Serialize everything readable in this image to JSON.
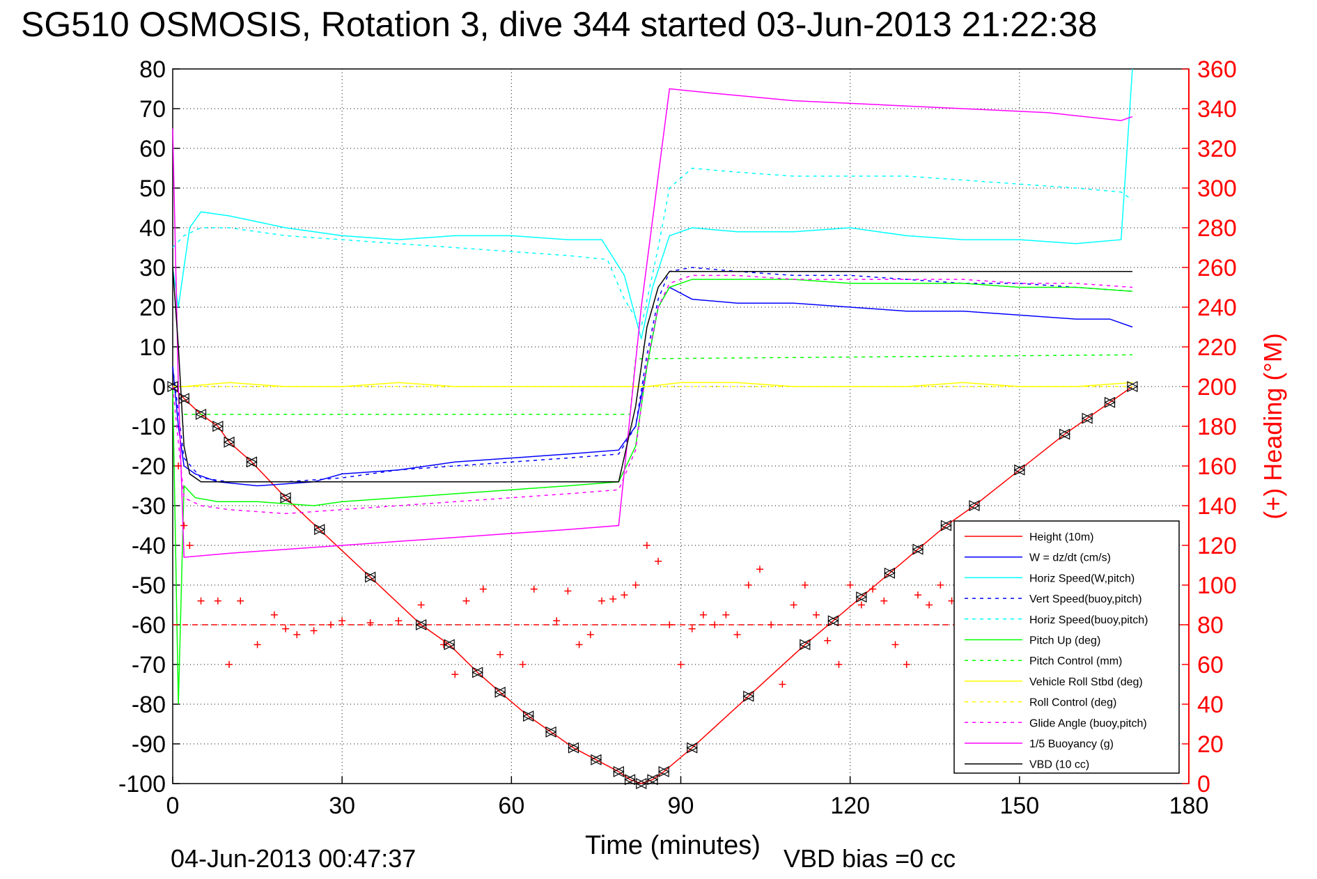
{
  "chart_data": {
    "type": "line",
    "title": "SG510 OSMOSIS, Rotation 3, dive 344 started 03-Jun-2013 21:22:38",
    "xlabel": "Time (minutes)",
    "ylabel_right": "(+) Heading (°M)",
    "footer_left": "04-Jun-2013 00:47:37",
    "footer_right": "VBD bias =0 cc",
    "xlim": [
      0,
      180
    ],
    "ylim_left": [
      -100,
      80
    ],
    "ylim_right": [
      0,
      360
    ],
    "x_ticks": [
      0,
      30,
      60,
      90,
      120,
      150,
      180
    ],
    "y_ticks_left": [
      80,
      70,
      60,
      50,
      40,
      30,
      20,
      10,
      0,
      -10,
      -20,
      -30,
      -40,
      -50,
      -60,
      -70,
      -80,
      -90,
      -100
    ],
    "y_ticks_right": [
      360,
      340,
      320,
      300,
      280,
      260,
      240,
      220,
      200,
      180,
      160,
      140,
      120,
      100,
      80,
      60,
      40,
      20,
      0
    ],
    "grid": true,
    "legend_position": "bottom-right",
    "colors": {
      "red": "#ff0000",
      "blue": "#0000ff",
      "cyan": "#00ffff",
      "green": "#00ff00",
      "yellow": "#ffff00",
      "magenta": "#ff00ff",
      "black": "#000000"
    },
    "series": [
      {
        "name": "Height (10m)",
        "color": "#ff0000",
        "style": "solid",
        "x": [
          0,
          2,
          5,
          8,
          10,
          14,
          20,
          26,
          35,
          44,
          49,
          54,
          58,
          63,
          67,
          71,
          75,
          79,
          81,
          83,
          85,
          87,
          92,
          102,
          112,
          117,
          122,
          127,
          132,
          137,
          142,
          150,
          158,
          162,
          166,
          170
        ],
        "y": [
          0,
          -3,
          -7,
          -10,
          -14,
          -19,
          -28,
          -36,
          -48,
          -60,
          -65,
          -72,
          -77,
          -83,
          -87,
          -91,
          -94,
          -97,
          -99,
          -100,
          -99,
          -97,
          -91,
          -78,
          -65,
          -59,
          -53,
          -47,
          -41,
          -35,
          -30,
          -21,
          -12,
          -8,
          -4,
          0
        ]
      },
      {
        "name": "W = dz/dt (cm/s)",
        "color": "#0000ff",
        "style": "solid",
        "x": [
          0,
          1,
          2,
          4,
          8,
          15,
          25,
          30,
          40,
          50,
          60,
          70,
          79,
          82,
          84,
          86,
          88,
          92,
          100,
          110,
          120,
          130,
          140,
          150,
          160,
          166,
          170
        ],
        "y": [
          5,
          -10,
          -20,
          -22,
          -24,
          -25,
          -24,
          -22,
          -21,
          -19,
          -18,
          -17,
          -16,
          -10,
          5,
          20,
          25,
          22,
          21,
          21,
          20,
          19,
          19,
          18,
          17,
          17,
          15
        ]
      },
      {
        "name": "Horiz Speed(W,pitch)",
        "color": "#00ffff",
        "style": "solid",
        "x": [
          0,
          1,
          3,
          5,
          10,
          20,
          30,
          40,
          50,
          60,
          70,
          76,
          80,
          83,
          85,
          88,
          92,
          100,
          110,
          120,
          130,
          140,
          150,
          160,
          168,
          170
        ],
        "y": [
          30,
          20,
          40,
          44,
          43,
          40,
          38,
          37,
          38,
          38,
          37,
          37,
          28,
          12,
          25,
          38,
          40,
          39,
          39,
          40,
          38,
          37,
          37,
          36,
          37,
          80
        ]
      },
      {
        "name": "Vert Speed(buoy,pitch)",
        "color": "#0000ff",
        "style": "dashed",
        "x": [
          0,
          2,
          5,
          10,
          20,
          30,
          40,
          50,
          60,
          70,
          79,
          82,
          84,
          86,
          88,
          92,
          100,
          110,
          120,
          130,
          140,
          150,
          160,
          170
        ],
        "y": [
          5,
          -18,
          -23,
          -24,
          -24,
          -23,
          -21,
          -20,
          -19,
          -18,
          -17,
          -10,
          8,
          22,
          29,
          30,
          29,
          28,
          28,
          27,
          26,
          26,
          25,
          24
        ]
      },
      {
        "name": "Horiz Speed(buoy,pitch)",
        "color": "#00ffff",
        "style": "dashed",
        "x": [
          0,
          2,
          5,
          10,
          20,
          30,
          40,
          50,
          60,
          70,
          77,
          80,
          83,
          86,
          88,
          92,
          100,
          110,
          120,
          130,
          140,
          150,
          160,
          168,
          170
        ],
        "y": [
          35,
          38,
          40,
          40,
          38,
          37,
          36,
          35,
          34,
          33,
          32,
          22,
          15,
          35,
          50,
          55,
          54,
          53,
          53,
          53,
          52,
          51,
          50,
          49,
          47
        ]
      },
      {
        "name": "Pitch Up (deg)",
        "color": "#00ff00",
        "style": "solid",
        "x": [
          0,
          1,
          2,
          4,
          8,
          15,
          25,
          30,
          40,
          50,
          60,
          70,
          79,
          82,
          84,
          86,
          88,
          92,
          100,
          110,
          120,
          130,
          140,
          150,
          160,
          170
        ],
        "y": [
          0,
          -80,
          -25,
          -28,
          -29,
          -29,
          -30,
          -29,
          -28,
          -27,
          -26,
          -25,
          -24,
          -15,
          5,
          20,
          25,
          27,
          27,
          27,
          26,
          26,
          26,
          25,
          25,
          24
        ]
      },
      {
        "name": "Pitch Control (mm)",
        "color": "#00ff00",
        "style": "dashed",
        "x": [
          2,
          80,
          81,
          82,
          170
        ],
        "y": [
          -7,
          -7,
          -7,
          7,
          8
        ]
      },
      {
        "name": "Vehicle Roll Stbd (deg)",
        "color": "#ffff00",
        "style": "solid",
        "x": [
          0,
          2,
          10,
          20,
          30,
          40,
          50,
          60,
          70,
          80,
          84,
          90,
          100,
          110,
          120,
          130,
          140,
          150,
          160,
          170
        ],
        "y": [
          0,
          0,
          1,
          0,
          0,
          1,
          0,
          0,
          0,
          0,
          0,
          1,
          1,
          0,
          0,
          0,
          1,
          0,
          0,
          1
        ]
      },
      {
        "name": "Roll Control (deg)",
        "color": "#ffff00",
        "style": "dashed",
        "x": [
          0,
          2,
          30,
          60,
          80,
          84,
          120,
          150,
          170
        ],
        "y": [
          0,
          0,
          0,
          0,
          0,
          0,
          0,
          0,
          0
        ]
      },
      {
        "name": "Glide Angle (buoy,pitch)",
        "color": "#ff00ff",
        "style": "dashed",
        "x": [
          0,
          2,
          5,
          10,
          20,
          30,
          40,
          50,
          60,
          70,
          79,
          82,
          84,
          86,
          88,
          92,
          100,
          110,
          120,
          130,
          140,
          150,
          160,
          170
        ],
        "y": [
          0,
          -28,
          -30,
          -31,
          -32,
          -31,
          -30,
          -29,
          -28,
          -27,
          -26,
          -16,
          6,
          20,
          26,
          28,
          28,
          27,
          27,
          27,
          27,
          26,
          26,
          25
        ]
      },
      {
        "name": "1/5 Buoyancy (g)",
        "color": "#ff00ff",
        "style": "solid",
        "x": [
          0,
          1,
          2,
          10,
          20,
          30,
          40,
          50,
          60,
          70,
          79,
          83,
          88,
          95,
          110,
          125,
          140,
          155,
          168,
          170
        ],
        "y": [
          65,
          0,
          -43,
          -42,
          -41,
          -40,
          -39,
          -38,
          -37,
          -36,
          -35,
          20,
          75,
          74,
          72,
          71,
          70,
          69,
          67,
          68
        ]
      },
      {
        "name": "VBD (10 cc)",
        "color": "#000000",
        "style": "solid",
        "x": [
          0,
          1,
          2,
          3,
          5,
          10,
          20,
          30,
          40,
          50,
          60,
          70,
          79,
          82,
          84,
          86,
          88,
          90,
          100,
          110,
          120,
          130,
          140,
          150,
          160,
          170
        ],
        "y": [
          30,
          10,
          -15,
          -22,
          -24,
          -24,
          -24,
          -24,
          -24,
          -24,
          -24,
          -24,
          -24,
          -5,
          15,
          25,
          29,
          29,
          29,
          29,
          29,
          29,
          29,
          29,
          29,
          29
        ]
      }
    ],
    "heading": {
      "name": "Heading (deg M), right axis",
      "color": "#ff0000",
      "reference": {
        "value": 80,
        "style": "dashed"
      },
      "x": [
        1,
        2,
        3,
        5,
        8,
        10,
        12,
        15,
        18,
        20,
        22,
        25,
        28,
        30,
        35,
        40,
        44,
        48,
        50,
        52,
        55,
        58,
        62,
        64,
        68,
        70,
        72,
        74,
        76,
        78,
        80,
        82,
        84,
        86,
        88,
        90,
        92,
        94,
        96,
        98,
        100,
        102,
        104,
        106,
        108,
        110,
        112,
        114,
        116,
        118,
        120,
        122,
        124,
        126,
        128,
        130,
        132,
        134,
        136,
        138,
        140,
        142,
        144
      ],
      "y": [
        160,
        130,
        120,
        92,
        92,
        60,
        92,
        70,
        85,
        78,
        75,
        77,
        80,
        82,
        81,
        82,
        90,
        70,
        55,
        92,
        98,
        65,
        60,
        98,
        82,
        97,
        70,
        75,
        92,
        93,
        95,
        100,
        120,
        112,
        80,
        60,
        78,
        85,
        80,
        85,
        75,
        100,
        108,
        80,
        50,
        90,
        100,
        85,
        72,
        60,
        100,
        90,
        98,
        92,
        70,
        60,
        95,
        90,
        100,
        92,
        70,
        75,
        80
      ]
    }
  }
}
